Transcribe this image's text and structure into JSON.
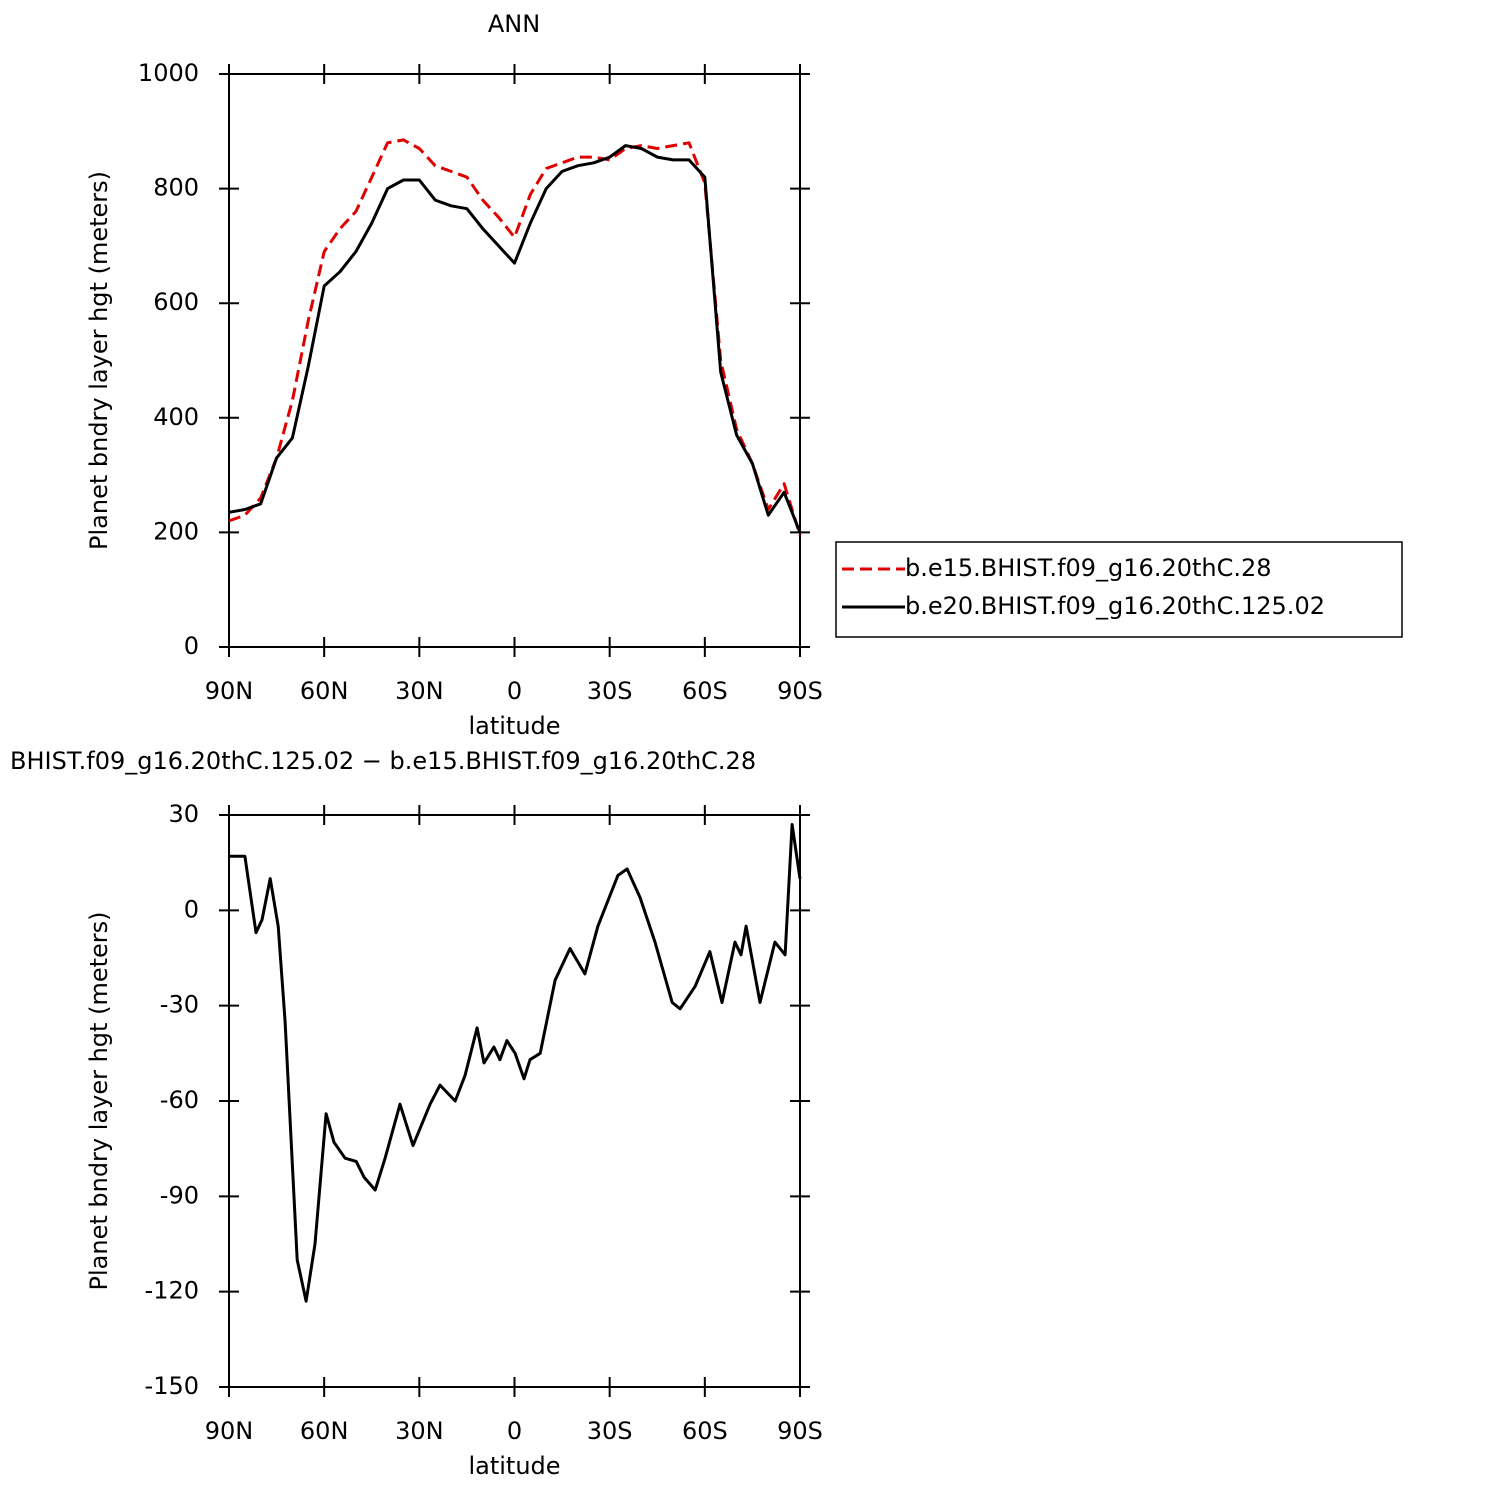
{
  "chart_data": [
    {
      "type": "line",
      "title": "ANN",
      "x_label": "latitude",
      "y_label": "Planet bndry layer hgt (meters)",
      "x": [
        90,
        85,
        80,
        75,
        70,
        65,
        60,
        55,
        50,
        45,
        40,
        35,
        30,
        25,
        20,
        15,
        10,
        5,
        0,
        -5,
        -10,
        -15,
        -20,
        -25,
        -30,
        -35,
        -40,
        -45,
        -50,
        -55,
        -60,
        -65,
        -70,
        -75,
        -80,
        -85,
        -90
      ],
      "series": [
        {
          "name": "b.e15.BHIST.f09_g16.20thC.28",
          "color": "#e00000",
          "dash": true,
          "values": [
            220,
            230,
            260,
            330,
            430,
            570,
            690,
            730,
            760,
            820,
            880,
            885,
            870,
            840,
            830,
            820,
            780,
            750,
            715,
            790,
            835,
            845,
            855,
            855,
            850,
            870,
            875,
            870,
            875,
            880,
            810,
            500,
            380,
            320,
            240,
            285,
            195
          ]
        },
        {
          "name": "b.e20.BHIST.f09_g16.20thC.125.02",
          "color": "#000000",
          "dash": false,
          "values": [
            235,
            240,
            250,
            330,
            365,
            490,
            630,
            655,
            690,
            740,
            800,
            815,
            815,
            780,
            770,
            765,
            730,
            700,
            670,
            740,
            800,
            830,
            840,
            845,
            855,
            875,
            870,
            855,
            850,
            850,
            820,
            480,
            370,
            320,
            230,
            270,
            200
          ]
        }
      ],
      "xlim": [
        90,
        -90
      ],
      "xticks": [
        {
          "value": 90,
          "label": "90N"
        },
        {
          "value": 60,
          "label": "60N"
        },
        {
          "value": 30,
          "label": "30N"
        },
        0,
        {
          "value": -30,
          "label": "30S"
        },
        {
          "value": -60,
          "label": "60S"
        },
        {
          "value": -90,
          "label": "90S"
        }
      ],
      "ylim": [
        0,
        1000
      ],
      "yticks": [
        0,
        200,
        400,
        600,
        800,
        1000
      ],
      "legend": "right"
    },
    {
      "type": "line",
      "title": "BHIST.f09_g16.20thC.125.02 − b.e15.BHIST.f09_g16.20thC.28",
      "x_label": "latitude",
      "y_label": "Planet bndry layer hgt (meters)",
      "x": [
        90,
        85,
        81.5,
        79.6,
        77,
        74.5,
        72.3,
        68.5,
        65.7,
        62.9,
        59.4,
        56.9,
        53.4,
        49.9,
        47.4,
        43.9,
        40.8,
        36.1,
        32.0,
        26.6,
        23.5,
        18.7,
        15.6,
        11.8,
        9.6,
        6.5,
        4.6,
        2.4,
        -0.2,
        -3.0,
        -4.9,
        -8.1,
        -12.8,
        -17.5,
        -22.2,
        -26.3,
        -32.6,
        -35.5,
        -39.6,
        -44.3,
        -49.7,
        -52.2,
        -56.9,
        -61.6,
        -65.4,
        -69.5,
        -71.4,
        -73.0,
        -77.4,
        -82.1,
        -85.3,
        -87.5,
        -90
      ],
      "series": [
        {
          "color": "#000000",
          "dash": false,
          "values": [
            17,
            17,
            -7,
            -3,
            10,
            -5,
            -35,
            -110,
            -123,
            -105,
            -64,
            -73,
            -78,
            -79,
            -84,
            -88,
            -78,
            -61,
            -74,
            -61,
            -55,
            -60,
            -52,
            -37,
            -48,
            -43,
            -47,
            -41,
            -45,
            -53,
            -47,
            -45,
            -22,
            -12,
            -20,
            -5,
            11,
            13,
            4,
            -10,
            -29,
            -31,
            -24,
            -13,
            -29,
            -10,
            -14,
            -5,
            -29,
            -10,
            -14,
            27,
            10
          ]
        }
      ],
      "xlim": [
        90,
        -90
      ],
      "xticks": [
        {
          "value": 90,
          "label": "90N"
        },
        {
          "value": 60,
          "label": "60N"
        },
        {
          "value": 30,
          "label": "30N"
        },
        0,
        {
          "value": -30,
          "label": "30S"
        },
        {
          "value": -60,
          "label": "60S"
        },
        {
          "value": -90,
          "label": "90S"
        }
      ],
      "ylim": [
        -150,
        30
      ],
      "yticks": [
        -150,
        -120,
        -90,
        -60,
        -30,
        0,
        30
      ]
    }
  ]
}
